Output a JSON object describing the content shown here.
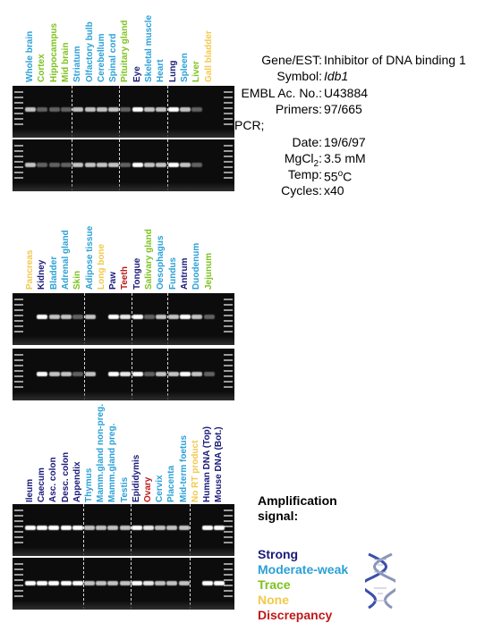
{
  "gene_info": {
    "rows": [
      {
        "key": "Gene/EST:",
        "value": "Inhibitor of DNA binding 1"
      },
      {
        "key": "Symbol:",
        "value": "Idb1"
      },
      {
        "key": "EMBL Ac. No.:",
        "value": "U43884"
      },
      {
        "key": "Primers:",
        "value": "97/665"
      },
      {
        "key": "PCR;",
        "value": ""
      },
      {
        "key": "Date:",
        "value": "19/6/97"
      },
      {
        "key": "MgCl2:",
        "value": "3.5 mM"
      },
      {
        "key": "Temp:",
        "value": "55oC"
      },
      {
        "key": "Cycles:",
        "value": "x40"
      }
    ]
  },
  "colors": {
    "strong": "#1a1a7a",
    "moderate": "#2aa0d6",
    "trace": "#7dc21e",
    "none": "#f2c94c",
    "discrepancy": "#c01818"
  },
  "panels": [
    {
      "lanes": [
        {
          "label": "Whole brain",
          "signal": "moderate"
        },
        {
          "label": "Cortex",
          "signal": "trace"
        },
        {
          "label": "Hippocampus",
          "signal": "trace"
        },
        {
          "label": "Mid brain",
          "signal": "trace"
        },
        {
          "label": "Striatum",
          "signal": "moderate"
        },
        {
          "label": "Olfactory bulb",
          "signal": "moderate"
        },
        {
          "label": "Cerebellum",
          "signal": "moderate"
        },
        {
          "label": "Spinal cord",
          "signal": "moderate"
        },
        {
          "label": "Pituitary gland",
          "signal": "trace"
        },
        {
          "label": "Eye",
          "signal": "strong"
        },
        {
          "label": "Skeletal muscle",
          "signal": "moderate"
        },
        {
          "label": "Heart",
          "signal": "moderate"
        },
        {
          "label": "Lung",
          "signal": "strong"
        },
        {
          "label": "Spleen",
          "signal": "moderate"
        },
        {
          "label": "Liver",
          "signal": "trace"
        },
        {
          "label": "Gall bladder",
          "signal": "none"
        }
      ]
    },
    {
      "lanes": [
        {
          "label": "Pancreas",
          "signal": "none"
        },
        {
          "label": "Kidney",
          "signal": "strong"
        },
        {
          "label": "Bladder",
          "signal": "moderate"
        },
        {
          "label": "Adrenal gland",
          "signal": "moderate"
        },
        {
          "label": "Skin",
          "signal": "trace"
        },
        {
          "label": "Adipose tissue",
          "signal": "moderate"
        },
        {
          "label": "Long bone",
          "signal": "none"
        },
        {
          "label": "Paw",
          "signal": "strong"
        },
        {
          "label": "Teeth",
          "signal": "discrepancy"
        },
        {
          "label": "Tongue",
          "signal": "strong"
        },
        {
          "label": "Salivary gland",
          "signal": "trace"
        },
        {
          "label": "Oesophagus",
          "signal": "moderate"
        },
        {
          "label": "Fundus",
          "signal": "moderate"
        },
        {
          "label": "Antrum",
          "signal": "strong"
        },
        {
          "label": "Duodenum",
          "signal": "moderate"
        },
        {
          "label": "Jejunum",
          "signal": "trace"
        }
      ]
    },
    {
      "lanes": [
        {
          "label": "Ileum",
          "signal": "strong"
        },
        {
          "label": "Caecum",
          "signal": "strong"
        },
        {
          "label": "Asc. colon",
          "signal": "strong"
        },
        {
          "label": "Desc. colon",
          "signal": "strong"
        },
        {
          "label": "Appendix",
          "signal": "strong"
        },
        {
          "label": "Thymus",
          "signal": "moderate"
        },
        {
          "label": "Mamm.gland non-preg.",
          "signal": "moderate"
        },
        {
          "label": "Mamm.gland preg.",
          "signal": "moderate"
        },
        {
          "label": "Testis",
          "signal": "moderate"
        },
        {
          "label": "Epididymis",
          "signal": "strong"
        },
        {
          "label": "Ovary",
          "signal": "discrepancy"
        },
        {
          "label": "Cervix",
          "signal": "moderate"
        },
        {
          "label": "Placenta",
          "signal": "moderate"
        },
        {
          "label": "Mid-term foetus",
          "signal": "moderate"
        },
        {
          "label": "No RT product",
          "signal": "none"
        },
        {
          "label": "Human DNA (Top)",
          "signal": "strong"
        },
        {
          "label": "Mouse DNA (Bot.)",
          "signal": "strong"
        }
      ]
    }
  ],
  "legend": {
    "title_line1": "Amplification",
    "title_line2": "signal:",
    "items": [
      {
        "label": "Strong",
        "color": "#1a1a7a"
      },
      {
        "label": "Moderate-weak",
        "color": "#2aa0d6"
      },
      {
        "label": "Trace",
        "color": "#7dc21e"
      },
      {
        "label": "None",
        "color": "#f2c94c"
      },
      {
        "label": "Discrepancy",
        "color": "#c01818"
      }
    ]
  }
}
